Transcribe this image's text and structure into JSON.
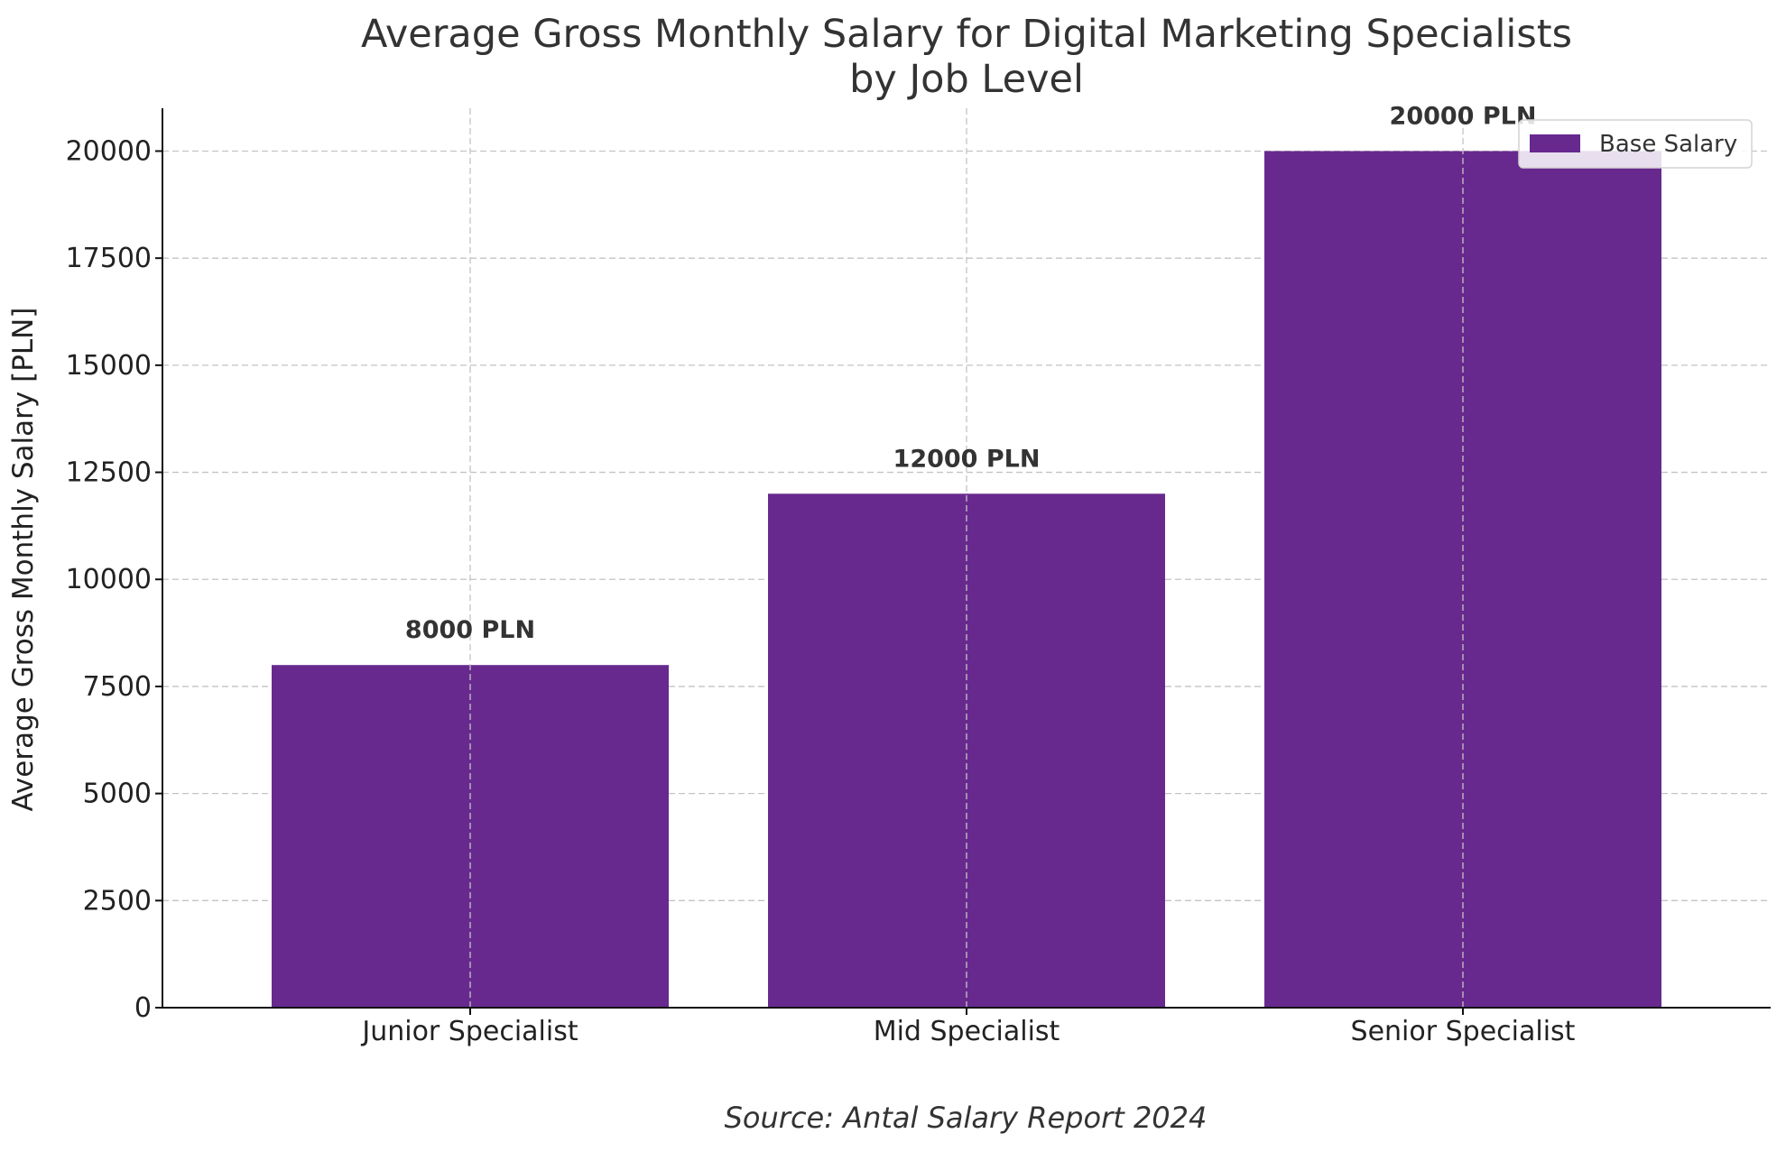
{
  "chart_data": {
    "type": "bar",
    "title": "Average Gross Monthly Salary for Digital Marketing Specialists\nby Job Level",
    "xlabel": "",
    "ylabel": "Average Gross Monthly Salary [PLN]",
    "categories": [
      "Junior Specialist",
      "Mid Specialist",
      "Senior Specialist"
    ],
    "series": [
      {
        "name": "Base Salary",
        "values": [
          8000,
          12000,
          20000
        ],
        "color": "#68298f"
      }
    ],
    "data_labels": [
      "8000 PLN",
      "12000 PLN",
      "20000 PLN"
    ],
    "ylim": [
      0,
      21000
    ],
    "yticks": [
      0,
      2500,
      5000,
      7500,
      10000,
      12500,
      15000,
      17500,
      20000
    ],
    "grid": true,
    "legend": "top-right",
    "source": "Source: Antal Salary Report 2024"
  }
}
